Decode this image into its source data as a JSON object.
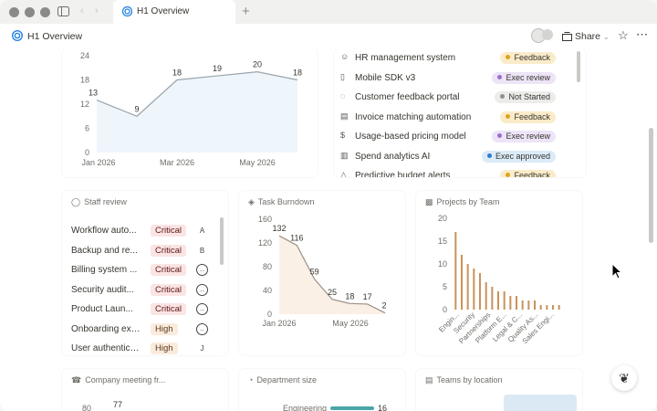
{
  "window": {
    "tab_title": "H1 Overview",
    "page_title": "H1 Overview",
    "share_label": "Share"
  },
  "colors": {
    "accent": "#2383e2",
    "line": "#9aa5ad",
    "area": "#eef5fb",
    "burndown_line": "#9d8f86",
    "burndown_area": "#fbf0e6",
    "bar": "#c8935a",
    "dept_bar": "#4aa6a8"
  },
  "top_chart": {
    "chart_data": {
      "type": "area",
      "x": [
        "Jan 2026",
        "Feb 2026",
        "Mar 2026",
        "Apr 2026",
        "May 2026",
        "Jun 2026"
      ],
      "values": [
        13,
        9,
        18,
        19,
        20,
        18
      ],
      "xticks": [
        "Jan 2026",
        "Mar 2026",
        "May 2026"
      ],
      "yticks": [
        "0",
        "6",
        "12",
        "18",
        "24"
      ],
      "ylim": [
        0,
        24
      ]
    }
  },
  "tasks": [
    {
      "name": "HR management system",
      "icon": "people-icon",
      "status": "Feedback",
      "status_color": "#fbecc9",
      "dot": "#e0a21e"
    },
    {
      "name": "Mobile SDK v3",
      "icon": "phone-icon",
      "status": "Exec review",
      "status_color": "#ede4f7",
      "dot": "#9b6fd0"
    },
    {
      "name": "Customer feedback portal",
      "icon": "chat-icon",
      "status": "Not Started",
      "status_color": "#ececea",
      "dot": "#8f8f8c"
    },
    {
      "name": "Invoice matching automation",
      "icon": "invoice-icon",
      "status": "Feedback",
      "status_color": "#fbecc9",
      "dot": "#e0a21e"
    },
    {
      "name": "Usage-based pricing model",
      "icon": "dollar-icon",
      "status": "Exec review",
      "status_color": "#ede4f7",
      "dot": "#9b6fd0"
    },
    {
      "name": "Spend analytics AI",
      "icon": "report-icon",
      "status": "Exec approved",
      "status_color": "#dcebf8",
      "dot": "#2b7fd1"
    },
    {
      "name": "Predictive budget alerts",
      "icon": "bell-icon",
      "status": "Feedback",
      "status_color": "#fbecc9",
      "dot": "#e0a21e"
    }
  ],
  "staff_review": {
    "title": "Staff review",
    "rows": [
      {
        "name": "Workflow auto...",
        "severity": "Critical",
        "assignee": "A"
      },
      {
        "name": "Backup and re...",
        "severity": "Critical",
        "assignee": "B"
      },
      {
        "name": "Billing system ...",
        "severity": "Critical",
        "assignee": ""
      },
      {
        "name": "Security audit...",
        "severity": "Critical",
        "assignee": ""
      },
      {
        "name": "Product Laun...",
        "severity": "Critical",
        "assignee": ""
      },
      {
        "name": "Onboarding exp...",
        "severity": "High",
        "assignee": ""
      },
      {
        "name": "User authentica...",
        "severity": "High",
        "assignee": "J"
      }
    ]
  },
  "task_burndown": {
    "title": "Task Burndown",
    "chart_data": {
      "type": "area",
      "values": [
        132,
        116,
        59,
        25,
        18,
        17,
        2
      ],
      "xticks": [
        "Jan 2026",
        "May 2026"
      ],
      "yticks": [
        "0",
        "40",
        "80",
        "120",
        "160"
      ],
      "ylim": [
        0,
        160
      ]
    }
  },
  "projects_by_team": {
    "title": "Projects by Team",
    "chart_data": {
      "type": "bar",
      "values": [
        17,
        12,
        10,
        9,
        8,
        6,
        5,
        4,
        4,
        3,
        3,
        2,
        2,
        2,
        1,
        1,
        1,
        1
      ],
      "xticks": [
        "Engin...",
        "Security",
        "Partnerships",
        "Platform E...",
        "Legal & C...",
        "Quality As...",
        "Sales Engi..."
      ],
      "yticks": [
        "0",
        "5",
        "10",
        "15",
        "20"
      ],
      "ylim": [
        0,
        20
      ]
    }
  },
  "company_meeting": {
    "title": "Company meeting fr...",
    "y_first": "80",
    "value_label": "77"
  },
  "department_size": {
    "title": "Department size",
    "first_label": "Engineering",
    "first_value": 16
  },
  "teams_by_location": {
    "title": "Teams by location"
  }
}
